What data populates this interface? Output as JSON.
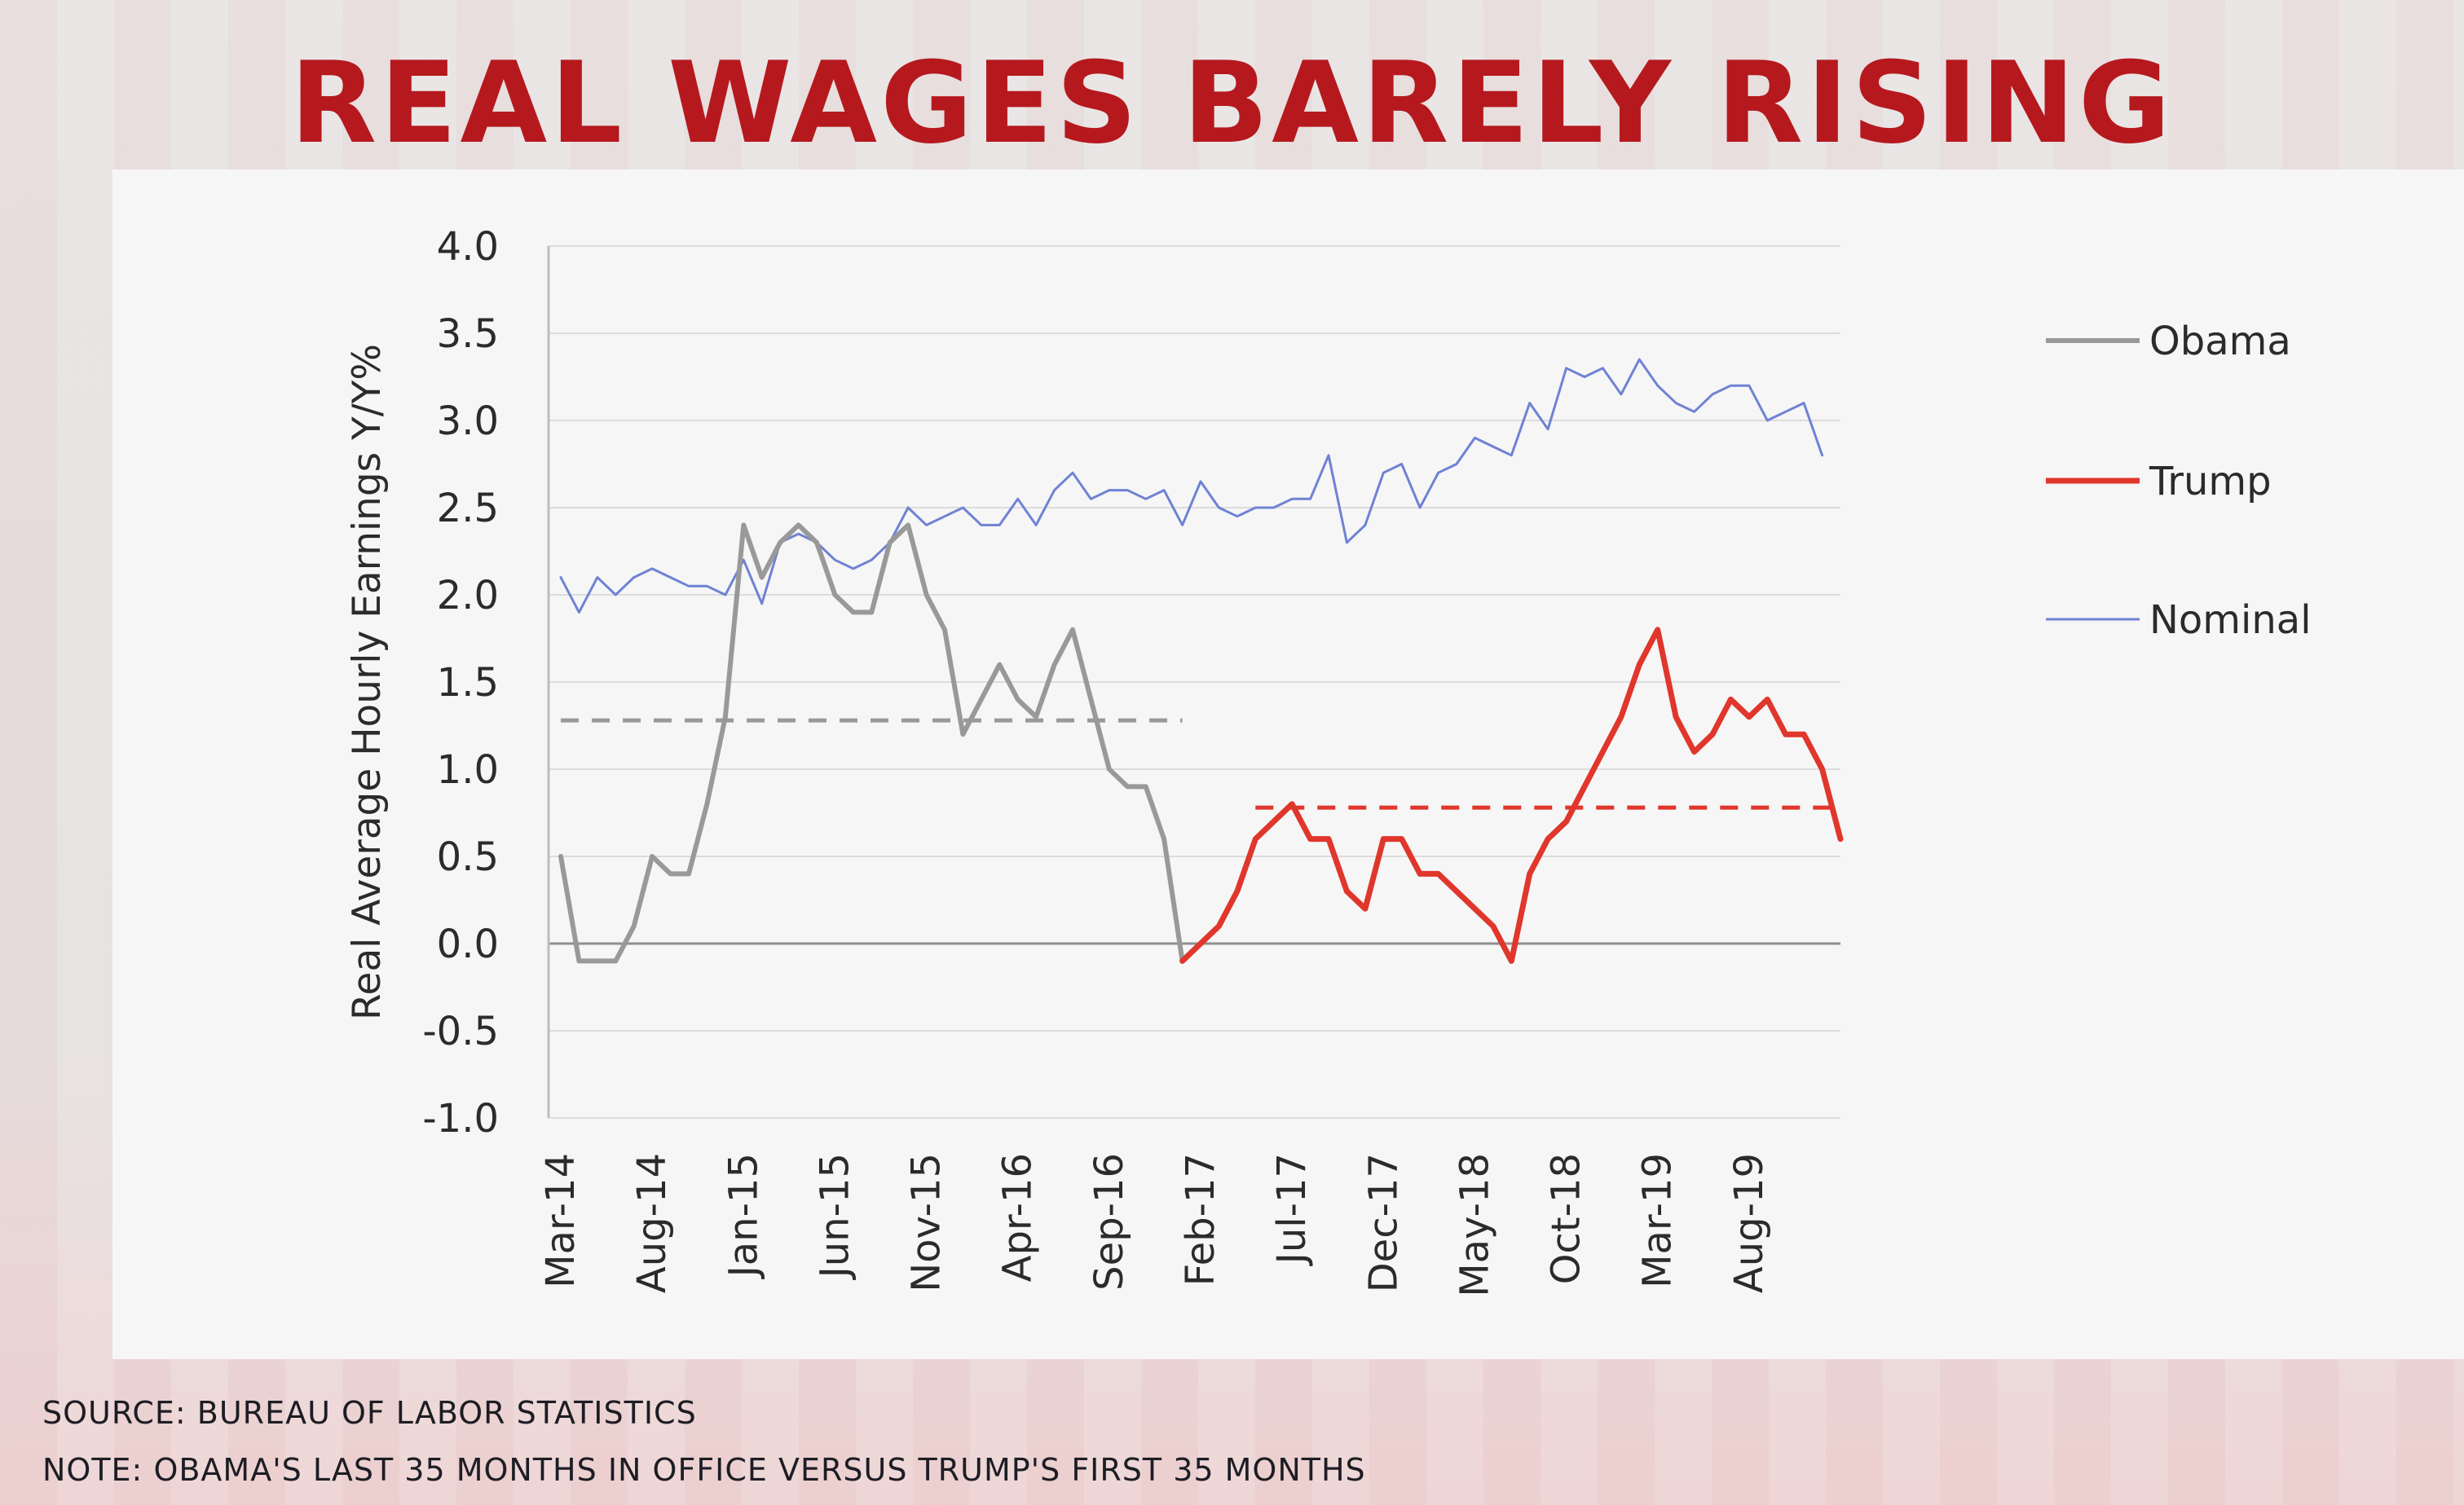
{
  "title": "REAL WAGES BARELY RISING",
  "footer": {
    "source": "SOURCE: BUREAU OF LABOR STATISTICS",
    "note": "NOTE: OBAMA'S LAST 35 MONTHS IN OFFICE VERSUS TRUMP'S FIRST 35 MONTHS"
  },
  "colors": {
    "title": "#b5191e",
    "obama": "#999999",
    "trump": "#e0362c",
    "nominal": "#6f82d4"
  },
  "chart_data": {
    "type": "line",
    "title": "REAL WAGES BARELY RISING",
    "xlabel": "",
    "ylabel": "Real Average Hourly Earnings Y/Y%",
    "ylim": [
      -1.0,
      4.0
    ],
    "yticks": [
      4.0,
      3.5,
      3.0,
      2.5,
      2.0,
      1.5,
      1.0,
      0.5,
      0.0,
      -0.5,
      -1.0
    ],
    "ytick_labels": [
      "4.0",
      "3.5",
      "3.0",
      "2.5",
      "2.0",
      "1.5",
      "1.0",
      "0.5",
      "0.0",
      "-0.5",
      "-1.0"
    ],
    "x_range": [
      0,
      70
    ],
    "x_ticks": [
      {
        "label": "Mar-14",
        "x": 0
      },
      {
        "label": "Aug-14",
        "x": 5
      },
      {
        "label": "Jan-15",
        "x": 10
      },
      {
        "label": "Jun-15",
        "x": 15
      },
      {
        "label": "Nov-15",
        "x": 20
      },
      {
        "label": "Apr-16",
        "x": 25
      },
      {
        "label": "Sep-16",
        "x": 30
      },
      {
        "label": "Feb-17",
        "x": 35
      },
      {
        "label": "Jul-17",
        "x": 40
      },
      {
        "label": "Dec-17",
        "x": 45
      },
      {
        "label": "May-18",
        "x": 50
      },
      {
        "label": "Oct-18",
        "x": 55
      },
      {
        "label": "Mar-19",
        "x": 60
      },
      {
        "label": "Aug-19",
        "x": 65
      }
    ],
    "grid": true,
    "legend": "right",
    "series": [
      {
        "name": "Obama",
        "x_start": 0,
        "values": [
          0.5,
          -0.1,
          -0.1,
          -0.1,
          0.1,
          0.5,
          0.4,
          0.4,
          0.8,
          1.3,
          2.4,
          2.1,
          2.3,
          2.4,
          2.3,
          2.0,
          1.9,
          1.9,
          2.3,
          2.4,
          2.0,
          1.8,
          1.2,
          1.4,
          1.6,
          1.4,
          1.3,
          1.6,
          1.8,
          1.4,
          1.0,
          0.9,
          0.9,
          0.6,
          -0.1
        ]
      },
      {
        "name": "Trump",
        "x_start": 34,
        "values": [
          -0.1,
          0.0,
          0.1,
          0.3,
          0.6,
          0.7,
          0.8,
          0.6,
          0.6,
          0.3,
          0.2,
          0.6,
          0.6,
          0.4,
          0.4,
          0.3,
          0.2,
          0.1,
          -0.1,
          0.4,
          0.6,
          0.7,
          0.9,
          1.1,
          1.3,
          1.6,
          1.8,
          1.3,
          1.1,
          1.2,
          1.4,
          1.3,
          1.4,
          1.2,
          1.2,
          1.0,
          0.6
        ]
      },
      {
        "name": "Nominal",
        "x_start": 0,
        "values": [
          2.1,
          1.9,
          2.1,
          2.0,
          2.1,
          2.15,
          2.1,
          2.05,
          2.05,
          2.0,
          2.2,
          1.95,
          2.3,
          2.35,
          2.3,
          2.2,
          2.15,
          2.2,
          2.3,
          2.5,
          2.4,
          2.45,
          2.5,
          2.4,
          2.4,
          2.55,
          2.4,
          2.6,
          2.7,
          2.55,
          2.6,
          2.6,
          2.55,
          2.6,
          2.4,
          2.65,
          2.5,
          2.45,
          2.5,
          2.5,
          2.55,
          2.55,
          2.8,
          2.3,
          2.4,
          2.7,
          2.75,
          2.5,
          2.7,
          2.75,
          2.9,
          2.85,
          2.8,
          3.1,
          2.95,
          3.3,
          3.25,
          3.3,
          3.15,
          3.35,
          3.2,
          3.1,
          3.05,
          3.15,
          3.2,
          3.2,
          3.0,
          3.05,
          3.1,
          2.8
        ]
      }
    ],
    "averages": [
      {
        "name": "Obama average",
        "value": 1.28,
        "x_from": 0,
        "x_to": 34
      },
      {
        "name": "Trump average",
        "value": 0.78,
        "x_from": 38,
        "x_to": 70
      }
    ]
  }
}
